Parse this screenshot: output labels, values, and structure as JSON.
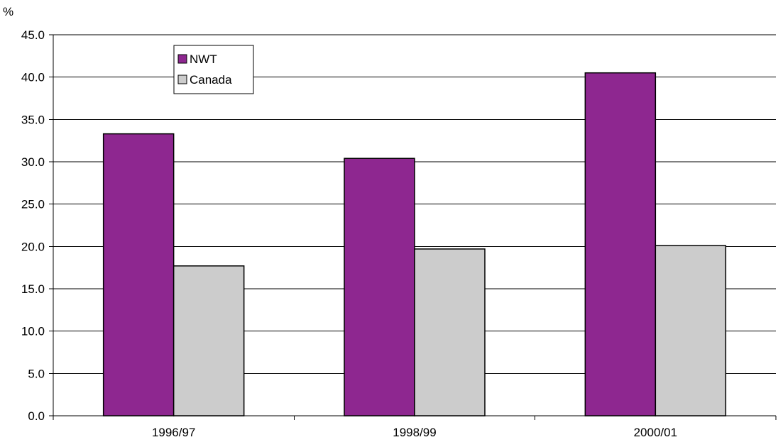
{
  "chart_data": {
    "type": "bar",
    "title": "",
    "unit_label": "%",
    "xlabel": "",
    "ylabel": "",
    "categories": [
      "1996/97",
      "1998/99",
      "2000/01"
    ],
    "series": [
      {
        "name": "NWT",
        "color": "#8e2790",
        "values": [
          33.3,
          30.4,
          40.5
        ]
      },
      {
        "name": "Canada",
        "color": "#cccccc",
        "values": [
          17.7,
          19.7,
          20.1
        ]
      }
    ],
    "ylim": [
      0,
      45
    ],
    "y_ticks": [
      "0.0",
      "5.0",
      "10.0",
      "15.0",
      "20.0",
      "25.0",
      "30.0",
      "35.0",
      "40.0",
      "45.0"
    ],
    "grid": true,
    "legend_position": "top-left"
  }
}
